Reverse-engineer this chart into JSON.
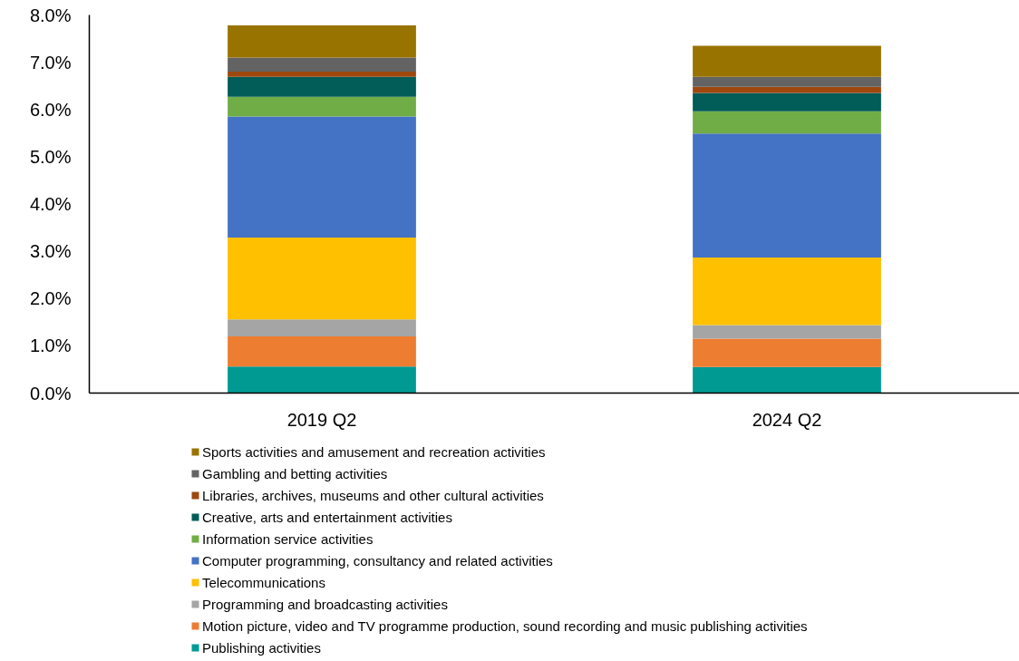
{
  "chart_data": {
    "type": "bar",
    "stacked": true,
    "categories": [
      "2019 Q2",
      "2024 Q2"
    ],
    "series": [
      {
        "name": "Publishing activities",
        "color": "#009a93",
        "values": [
          0.56,
          0.55
        ]
      },
      {
        "name": "Motion picture, video and TV programme production, sound recording and music publishing activities",
        "color": "#ed7d31",
        "values": [
          0.64,
          0.6
        ]
      },
      {
        "name": "Programming and broadcasting activities",
        "color": "#a5a5a5",
        "values": [
          0.36,
          0.29
        ]
      },
      {
        "name": "Telecommunications",
        "color": "#ffc000",
        "values": [
          1.73,
          1.43
        ]
      },
      {
        "name": "Computer programming, consultancy and related activities",
        "color": "#4472c4",
        "values": [
          2.56,
          2.62
        ]
      },
      {
        "name": "Information service activities",
        "color": "#70ad47",
        "values": [
          0.42,
          0.47
        ]
      },
      {
        "name": "Creative, arts and entertainment activities",
        "color": "#025c57",
        "values": [
          0.42,
          0.39
        ]
      },
      {
        "name": "Libraries, archives, museums and other cultural activities",
        "color": "#9e480e",
        "values": [
          0.11,
          0.13
        ]
      },
      {
        "name": "Gambling and betting activities",
        "color": "#636363",
        "values": [
          0.3,
          0.21
        ]
      },
      {
        "name": "Sports activities and amusement and recreation activities",
        "color": "#997300",
        "values": [
          0.68,
          0.66
        ]
      }
    ],
    "ylim": [
      0,
      8
    ],
    "yticks": [
      {
        "value": 0,
        "label": "0.0%"
      },
      {
        "value": 1,
        "label": "1.0%"
      },
      {
        "value": 2,
        "label": "2.0%"
      },
      {
        "value": 3,
        "label": "3.0%"
      },
      {
        "value": 4,
        "label": "4.0%"
      },
      {
        "value": 5,
        "label": "5.0%"
      },
      {
        "value": 6,
        "label": "6.0%"
      },
      {
        "value": 7,
        "label": "7.0%"
      },
      {
        "value": 8,
        "label": "8.0%"
      }
    ],
    "legend": "bottom",
    "grid": false
  }
}
